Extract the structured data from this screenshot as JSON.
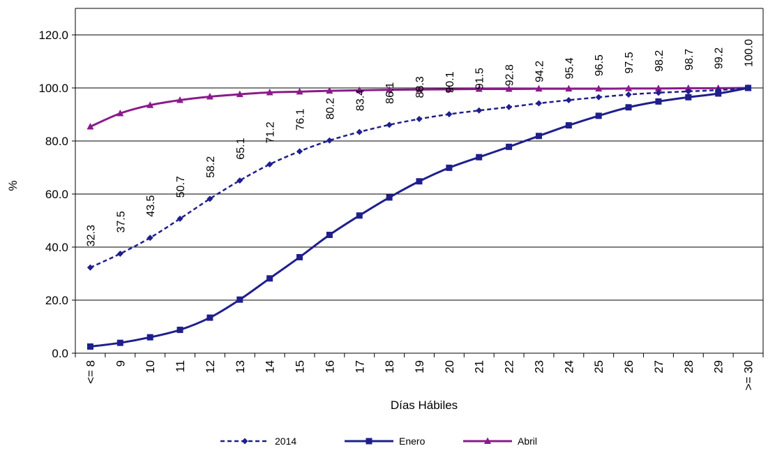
{
  "chart_data": {
    "type": "line",
    "title": "",
    "xlabel": "Días Hábiles",
    "ylabel": "%",
    "ylim": [
      0,
      130
    ],
    "yticks": [
      0,
      20,
      40,
      60,
      80,
      100,
      120
    ],
    "ytick_labels": [
      "0.0",
      "20.0",
      "40.0",
      "60.0",
      "80.0",
      "100.0",
      "120.0"
    ],
    "grid": "horizontal",
    "legend_position": "bottom",
    "categories": [
      "<= 8",
      "9",
      "10",
      "11",
      "12",
      "13",
      "14",
      "15",
      "16",
      "17",
      "18",
      "19",
      "20",
      "21",
      "22",
      "23",
      "24",
      "25",
      "26",
      "27",
      "28",
      "29",
      ">= 30"
    ],
    "series": [
      {
        "name": "2014",
        "color": "#1f1f8c",
        "style": "dashed",
        "marker": "diamond",
        "values": [
          32.3,
          37.5,
          43.5,
          50.7,
          58.2,
          65.1,
          71.2,
          76.1,
          80.2,
          83.4,
          86.1,
          88.3,
          90.1,
          91.5,
          92.8,
          94.2,
          95.4,
          96.5,
          97.5,
          98.2,
          98.7,
          99.2,
          100.0
        ],
        "data_labels": [
          "32.3",
          "37.5",
          "43.5",
          "50.7",
          "58.2",
          "65.1",
          "71.2",
          "76.1",
          "80.2",
          "83.4",
          "86.1",
          "88.3",
          "90.1",
          "91.5",
          "92.8",
          "94.2",
          "95.4",
          "96.5",
          "97.5",
          "98.2",
          "98.7",
          "99.2",
          "100.0"
        ]
      },
      {
        "name": "Enero",
        "color": "#1f1f8c",
        "style": "solid",
        "marker": "square",
        "values": [
          2.5,
          3.9,
          6.0,
          8.8,
          13.4,
          20.2,
          28.2,
          36.2,
          44.6,
          51.9,
          58.7,
          64.8,
          69.9,
          73.9,
          77.8,
          81.9,
          85.9,
          89.5,
          92.7,
          94.9,
          96.5,
          97.9,
          100.0
        ]
      },
      {
        "name": "Abril",
        "color": "#8b1a8b",
        "style": "solid",
        "marker": "triangle",
        "values": [
          85.4,
          90.4,
          93.5,
          95.4,
          96.7,
          97.6,
          98.3,
          98.6,
          98.9,
          99.1,
          99.3,
          99.4,
          99.5,
          99.6,
          99.6,
          99.7,
          99.7,
          99.7,
          99.8,
          99.8,
          99.9,
          99.9,
          100.0
        ]
      }
    ]
  }
}
